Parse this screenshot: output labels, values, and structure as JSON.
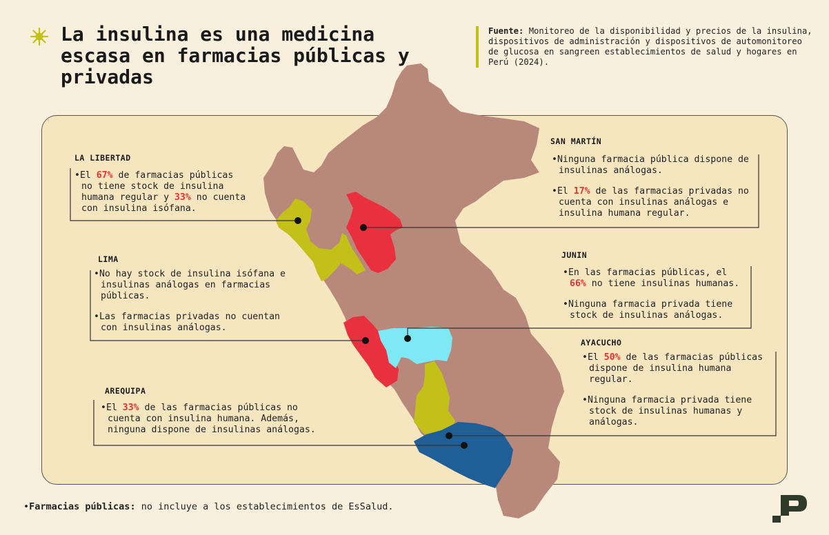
{
  "title": "La insulina es una medicina escasa en farmacias públicas y privadas",
  "source": {
    "label": "Fuente:",
    "text": "Monitoreo de la disponibilidad y precios de la insulina, dispositivos de administración y dispositivos de automonitoreo de glucosa en sangreen establecimientos de salud y hogares en Perú (2024)."
  },
  "colors": {
    "background": "#f8f0dc",
    "panel": "#f6e6bf",
    "map_base": "#b8897a",
    "la_libertad": "#c3c01a",
    "lima": "#e8303e",
    "san_martin": "#e8303e",
    "junin": "#7fe8f5",
    "ayacucho": "#c3c01a",
    "arequipa": "#1f5e96",
    "highlight": "#e03434",
    "accent": "#c3c01a"
  },
  "regions": {
    "la_libertad": {
      "name": "LA LIBERTAD",
      "b1_pre": "El ",
      "b1_hl1": "67%",
      "b1_mid": " de farmacias públicas no tiene stock de insulina humana regular y  ",
      "b1_hl2": "33%",
      "b1_post": " no cuenta con insulina isófana."
    },
    "san_martin": {
      "name": "SAN MARTÍN",
      "b1": "Ninguna farmacia pública dispone de insulinas análogas.",
      "b2_pre": "El ",
      "b2_hl": "17%",
      "b2_post": " de las farmacias privadas no cuenta con insulinas análogas e insulina humana regular."
    },
    "lima": {
      "name": "LIMA",
      "b1": "No hay stock de insulina isófana e insulinas análogas en farmacias públicas.",
      "b2": "Las farmacias privadas no cuentan con insulinas análogas."
    },
    "junin": {
      "name": "JUNIN",
      "b1_pre": "En las farmacias públicas, el ",
      "b1_hl": "66%",
      "b1_post": " no tiene insulinas humanas.",
      "b2": "Ninguna farmacia privada tiene stock de insulinas análogas."
    },
    "ayacucho": {
      "name": "AYACUCHO",
      "b1_pre": "El ",
      "b1_hl": "50%",
      "b1_post": " de las farmacias públicas dispone de insulina humana regular.",
      "b2": "Ninguna farmacia privada tiene stock de insulinas humanas y análogas."
    },
    "arequipa": {
      "name": "AREQUIPA",
      "b1_pre": "El ",
      "b1_hl": "33%",
      "b1_post": " de las farmacias públicas no cuenta con insulina humana. Además, ninguna  dispone de insulinas análogas."
    }
  },
  "footnote": {
    "label": "Farmacias públicas:",
    "text": " no incluye a los establecimientos de EsSalud."
  },
  "icons": {
    "star": "sun-star-icon",
    "logo": "brand-logo-icon"
  }
}
